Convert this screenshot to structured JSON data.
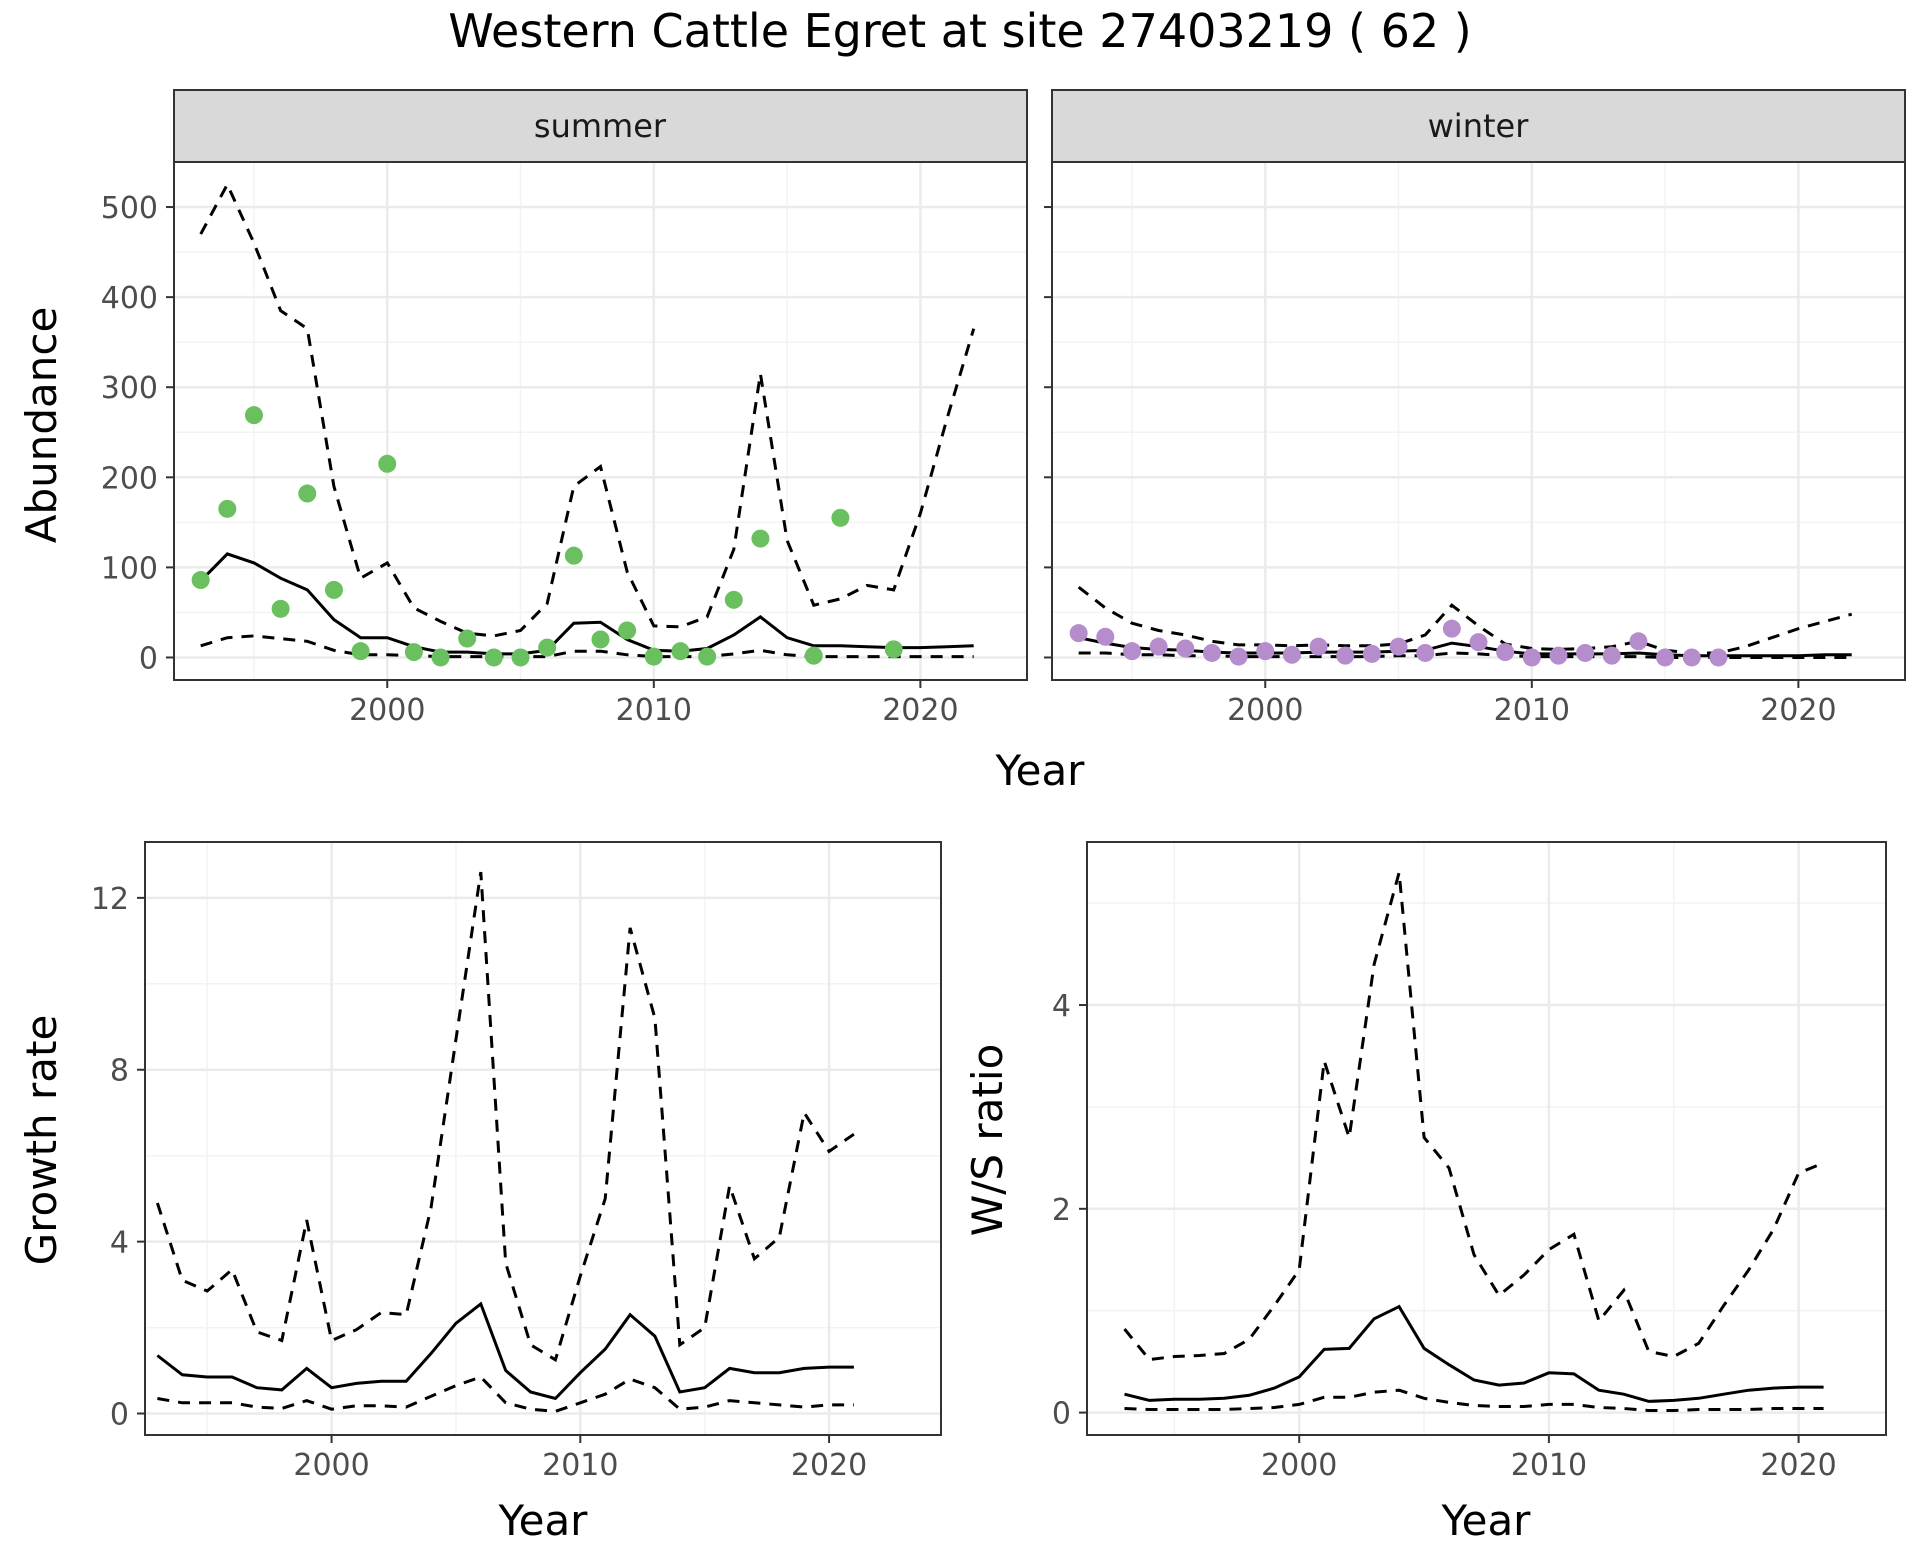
{
  "title": "Western Cattle Egret at site 27403219 ( 62 )",
  "colors": {
    "summer_points": "#6abf5e",
    "winter_points": "#b58ccc",
    "strip_fill": "#d9d9d9",
    "line": "#000000",
    "grid_major": "#ebebeb"
  },
  "chart_data": [
    {
      "type": "line",
      "panel": "abundance-summer",
      "strip": "summer",
      "xlabel": "Year",
      "ylabel": "Abundance",
      "xlim": [
        1992,
        2024
      ],
      "ylim": [
        -25,
        550
      ],
      "xticks": [
        2000,
        2010,
        2020
      ],
      "yticks": [
        0,
        100,
        200,
        300,
        400,
        500
      ],
      "points": {
        "x": [
          1993,
          1994,
          1995,
          1996,
          1997,
          1998,
          1999,
          2000,
          2001,
          2002,
          2003,
          2004,
          2005,
          2006,
          2007,
          2008,
          2009,
          2010,
          2011,
          2012,
          2013,
          2014,
          2016,
          2017,
          2019
        ],
        "y": [
          86,
          165,
          269,
          54,
          182,
          75,
          7,
          215,
          6,
          0,
          21,
          0,
          0,
          11,
          113,
          20,
          30,
          1,
          7,
          1,
          64,
          132,
          2,
          155,
          9
        ]
      },
      "series": [
        {
          "line": "solid",
          "x": [
            1993,
            1994,
            1995,
            1996,
            1997,
            1998,
            1999,
            2000,
            2001,
            2002,
            2003,
            2004,
            2005,
            2006,
            2007,
            2008,
            2009,
            2010,
            2011,
            2012,
            2013,
            2014,
            2015,
            2016,
            2017,
            2018,
            2019,
            2020,
            2021,
            2022
          ],
          "y": [
            85,
            115,
            105,
            88,
            75,
            42,
            22,
            22,
            12,
            6,
            6,
            4,
            4,
            8,
            38,
            39,
            20,
            8,
            7,
            10,
            25,
            45,
            22,
            13,
            13,
            12,
            11,
            11,
            12,
            13
          ]
        },
        {
          "line": "dashed",
          "x": [
            1993,
            1994,
            1995,
            1996,
            1997,
            1998,
            1999,
            2000,
            2001,
            2002,
            2003,
            2004,
            2005,
            2006,
            2007,
            2008,
            2009,
            2010,
            2011,
            2012,
            2013,
            2014,
            2015,
            2016,
            2017,
            2018,
            2019,
            2020,
            2021,
            2022
          ],
          "y": [
            470,
            525,
            460,
            385,
            365,
            190,
            88,
            105,
            55,
            40,
            27,
            24,
            30,
            60,
            190,
            212,
            95,
            35,
            34,
            45,
            120,
            315,
            130,
            58,
            65,
            80,
            75,
            160,
            265,
            365
          ]
        },
        {
          "line": "dashed",
          "x": [
            1993,
            1994,
            1995,
            1996,
            1997,
            1998,
            1999,
            2000,
            2001,
            2002,
            2003,
            2004,
            2005,
            2006,
            2007,
            2008,
            2009,
            2010,
            2011,
            2012,
            2013,
            2014,
            2015,
            2016,
            2017,
            2018,
            2019,
            2020,
            2021,
            2022
          ],
          "y": [
            13,
            22,
            24,
            21,
            18,
            8,
            3,
            3,
            2,
            1,
            1,
            1,
            1,
            1,
            7,
            7,
            3,
            1,
            1,
            1,
            4,
            8,
            3,
            1,
            1,
            1,
            1,
            1,
            1,
            1
          ]
        }
      ]
    },
    {
      "type": "line",
      "panel": "abundance-winter",
      "strip": "winter",
      "xlim": [
        1992,
        2024
      ],
      "ylim": [
        -25,
        550
      ],
      "xticks": [
        2000,
        2010,
        2020
      ],
      "yticks": [
        0,
        100,
        200,
        300,
        400,
        500
      ],
      "points": {
        "x": [
          1993,
          1994,
          1995,
          1996,
          1997,
          1998,
          1999,
          2000,
          2001,
          2002,
          2003,
          2004,
          2005,
          2006,
          2007,
          2008,
          2009,
          2010,
          2011,
          2012,
          2013,
          2014,
          2015,
          2016,
          2017
        ],
        "y": [
          27,
          23,
          7,
          12,
          10,
          5,
          1,
          7,
          3,
          12,
          2,
          4,
          12,
          5,
          32,
          17,
          6,
          0,
          2,
          5,
          2,
          18,
          0,
          0,
          0
        ]
      },
      "series": [
        {
          "line": "solid",
          "x": [
            1993,
            1994,
            1995,
            1996,
            1997,
            1998,
            1999,
            2000,
            2001,
            2002,
            2003,
            2004,
            2005,
            2006,
            2007,
            2008,
            2009,
            2010,
            2011,
            2012,
            2013,
            2014,
            2015,
            2016,
            2017,
            2018,
            2019,
            2020,
            2021,
            2022
          ],
          "y": [
            22,
            16,
            11,
            9,
            8,
            6,
            5,
            5,
            5,
            6,
            6,
            6,
            7,
            8,
            16,
            12,
            7,
            4,
            4,
            4,
            4,
            5,
            3,
            2,
            2,
            2,
            2,
            2,
            3,
            3
          ]
        },
        {
          "line": "dashed",
          "x": [
            1993,
            1994,
            1995,
            1996,
            1997,
            1998,
            1999,
            2000,
            2001,
            2002,
            2003,
            2004,
            2005,
            2006,
            2007,
            2008,
            2009,
            2010,
            2011,
            2012,
            2013,
            2014,
            2015,
            2016,
            2017,
            2018,
            2019,
            2020,
            2021,
            2022
          ],
          "y": [
            78,
            55,
            38,
            30,
            25,
            18,
            14,
            14,
            13,
            14,
            13,
            13,
            15,
            25,
            58,
            35,
            15,
            10,
            9,
            10,
            12,
            18,
            8,
            5,
            5,
            12,
            22,
            32,
            40,
            48
          ]
        },
        {
          "line": "dashed",
          "x": [
            1993,
            1994,
            1995,
            1996,
            1997,
            1998,
            1999,
            2000,
            2001,
            2002,
            2003,
            2004,
            2005,
            2006,
            2007,
            2008,
            2009,
            2010,
            2011,
            2012,
            2013,
            2014,
            2015,
            2016,
            2017,
            2018,
            2019,
            2020,
            2021,
            2022
          ],
          "y": [
            5,
            5,
            3,
            3,
            2,
            2,
            1,
            1,
            1,
            1,
            1,
            1,
            2,
            2,
            5,
            4,
            2,
            1,
            1,
            1,
            1,
            1,
            0,
            0,
            0,
            0,
            0,
            0,
            0,
            0
          ]
        }
      ]
    },
    {
      "type": "line",
      "panel": "growth-rate",
      "xlabel": "Year",
      "ylabel": "Growth rate",
      "xlim": [
        1992.5,
        2024.5
      ],
      "ylim": [
        -0.5,
        13.3
      ],
      "xticks": [
        2000,
        2010,
        2020
      ],
      "yticks": [
        0,
        4,
        8,
        12
      ],
      "series": [
        {
          "line": "solid",
          "x": [
            1993,
            1994,
            1995,
            1996,
            1997,
            1998,
            1999,
            2000,
            2001,
            2002,
            2003,
            2004,
            2005,
            2006,
            2007,
            2008,
            2009,
            2010,
            2011,
            2012,
            2013,
            2014,
            2015,
            2016,
            2017,
            2018,
            2019,
            2020,
            2021
          ],
          "y": [
            1.35,
            0.9,
            0.85,
            0.85,
            0.6,
            0.55,
            1.05,
            0.6,
            0.7,
            0.75,
            0.75,
            1.4,
            2.1,
            2.55,
            1.0,
            0.5,
            0.35,
            0.95,
            1.5,
            2.3,
            1.8,
            0.5,
            0.6,
            1.05,
            0.95,
            0.95,
            1.05,
            1.08,
            1.08
          ]
        },
        {
          "line": "dashed",
          "x": [
            1993,
            1994,
            1995,
            1996,
            1997,
            1998,
            1999,
            2000,
            2001,
            2002,
            2003,
            2004,
            2005,
            2006,
            2007,
            2008,
            2009,
            2010,
            2011,
            2012,
            2013,
            2014,
            2015,
            2016,
            2017,
            2018,
            2019,
            2020,
            2021
          ],
          "y": [
            4.9,
            3.1,
            2.85,
            3.35,
            1.9,
            1.7,
            4.5,
            1.7,
            1.95,
            2.35,
            2.3,
            4.8,
            8.7,
            12.6,
            3.5,
            1.6,
            1.25,
            3.2,
            5.0,
            11.3,
            9.2,
            1.6,
            2.0,
            5.3,
            3.6,
            4.1,
            7.0,
            6.1,
            6.5
          ]
        },
        {
          "line": "dashed",
          "x": [
            1993,
            1994,
            1995,
            1996,
            1997,
            1998,
            1999,
            2000,
            2001,
            2002,
            2003,
            2004,
            2005,
            2006,
            2007,
            2008,
            2009,
            2010,
            2011,
            2012,
            2013,
            2014,
            2015,
            2016,
            2017,
            2018,
            2019,
            2020,
            2021
          ],
          "y": [
            0.35,
            0.25,
            0.25,
            0.25,
            0.15,
            0.12,
            0.3,
            0.1,
            0.18,
            0.18,
            0.15,
            0.4,
            0.65,
            0.85,
            0.25,
            0.1,
            0.05,
            0.25,
            0.45,
            0.8,
            0.6,
            0.1,
            0.15,
            0.3,
            0.25,
            0.2,
            0.15,
            0.2,
            0.2
          ]
        }
      ]
    },
    {
      "type": "line",
      "panel": "ws-ratio",
      "xlabel": "Year",
      "ylabel": "W/S ratio",
      "xlim": [
        1991.5,
        2023.5
      ],
      "ylim": [
        -0.22,
        5.6
      ],
      "xticks": [
        2000,
        2010,
        2020
      ],
      "yticks": [
        0,
        2,
        4
      ],
      "series": [
        {
          "line": "solid",
          "x": [
            1993,
            1994,
            1995,
            1996,
            1997,
            1998,
            1999,
            2000,
            2001,
            2002,
            2003,
            2004,
            2005,
            2006,
            2007,
            2008,
            2009,
            2010,
            2011,
            2012,
            2013,
            2014,
            2015,
            2016,
            2017,
            2018,
            2019,
            2020,
            2021
          ],
          "y": [
            0.18,
            0.12,
            0.13,
            0.13,
            0.14,
            0.17,
            0.24,
            0.35,
            0.62,
            0.63,
            0.92,
            1.04,
            0.63,
            0.47,
            0.32,
            0.27,
            0.29,
            0.39,
            0.38,
            0.22,
            0.18,
            0.11,
            0.12,
            0.14,
            0.18,
            0.22,
            0.24,
            0.25,
            0.25
          ]
        },
        {
          "line": "dashed",
          "x": [
            1993,
            1994,
            1995,
            1996,
            1997,
            1998,
            1999,
            2000,
            2001,
            2002,
            2003,
            2004,
            2005,
            2006,
            2007,
            2008,
            2009,
            2010,
            2011,
            2012,
            2013,
            2014,
            2015,
            2016,
            2017,
            2018,
            2019,
            2020,
            2021
          ],
          "y": [
            0.82,
            0.52,
            0.55,
            0.56,
            0.58,
            0.72,
            1.05,
            1.4,
            3.45,
            2.7,
            4.4,
            5.3,
            2.7,
            2.4,
            1.55,
            1.15,
            1.35,
            1.6,
            1.75,
            0.9,
            1.2,
            0.6,
            0.55,
            0.68,
            1.05,
            1.4,
            1.8,
            2.35,
            2.45
          ]
        },
        {
          "line": "dashed",
          "x": [
            1993,
            1994,
            1995,
            1996,
            1997,
            1998,
            1999,
            2000,
            2001,
            2002,
            2003,
            2004,
            2005,
            2006,
            2007,
            2008,
            2009,
            2010,
            2011,
            2012,
            2013,
            2014,
            2015,
            2016,
            2017,
            2018,
            2019,
            2020,
            2021
          ],
          "y": [
            0.04,
            0.03,
            0.03,
            0.03,
            0.03,
            0.04,
            0.05,
            0.08,
            0.15,
            0.15,
            0.2,
            0.22,
            0.14,
            0.1,
            0.07,
            0.06,
            0.06,
            0.08,
            0.08,
            0.05,
            0.04,
            0.02,
            0.02,
            0.03,
            0.03,
            0.03,
            0.04,
            0.04,
            0.04
          ]
        }
      ]
    }
  ]
}
